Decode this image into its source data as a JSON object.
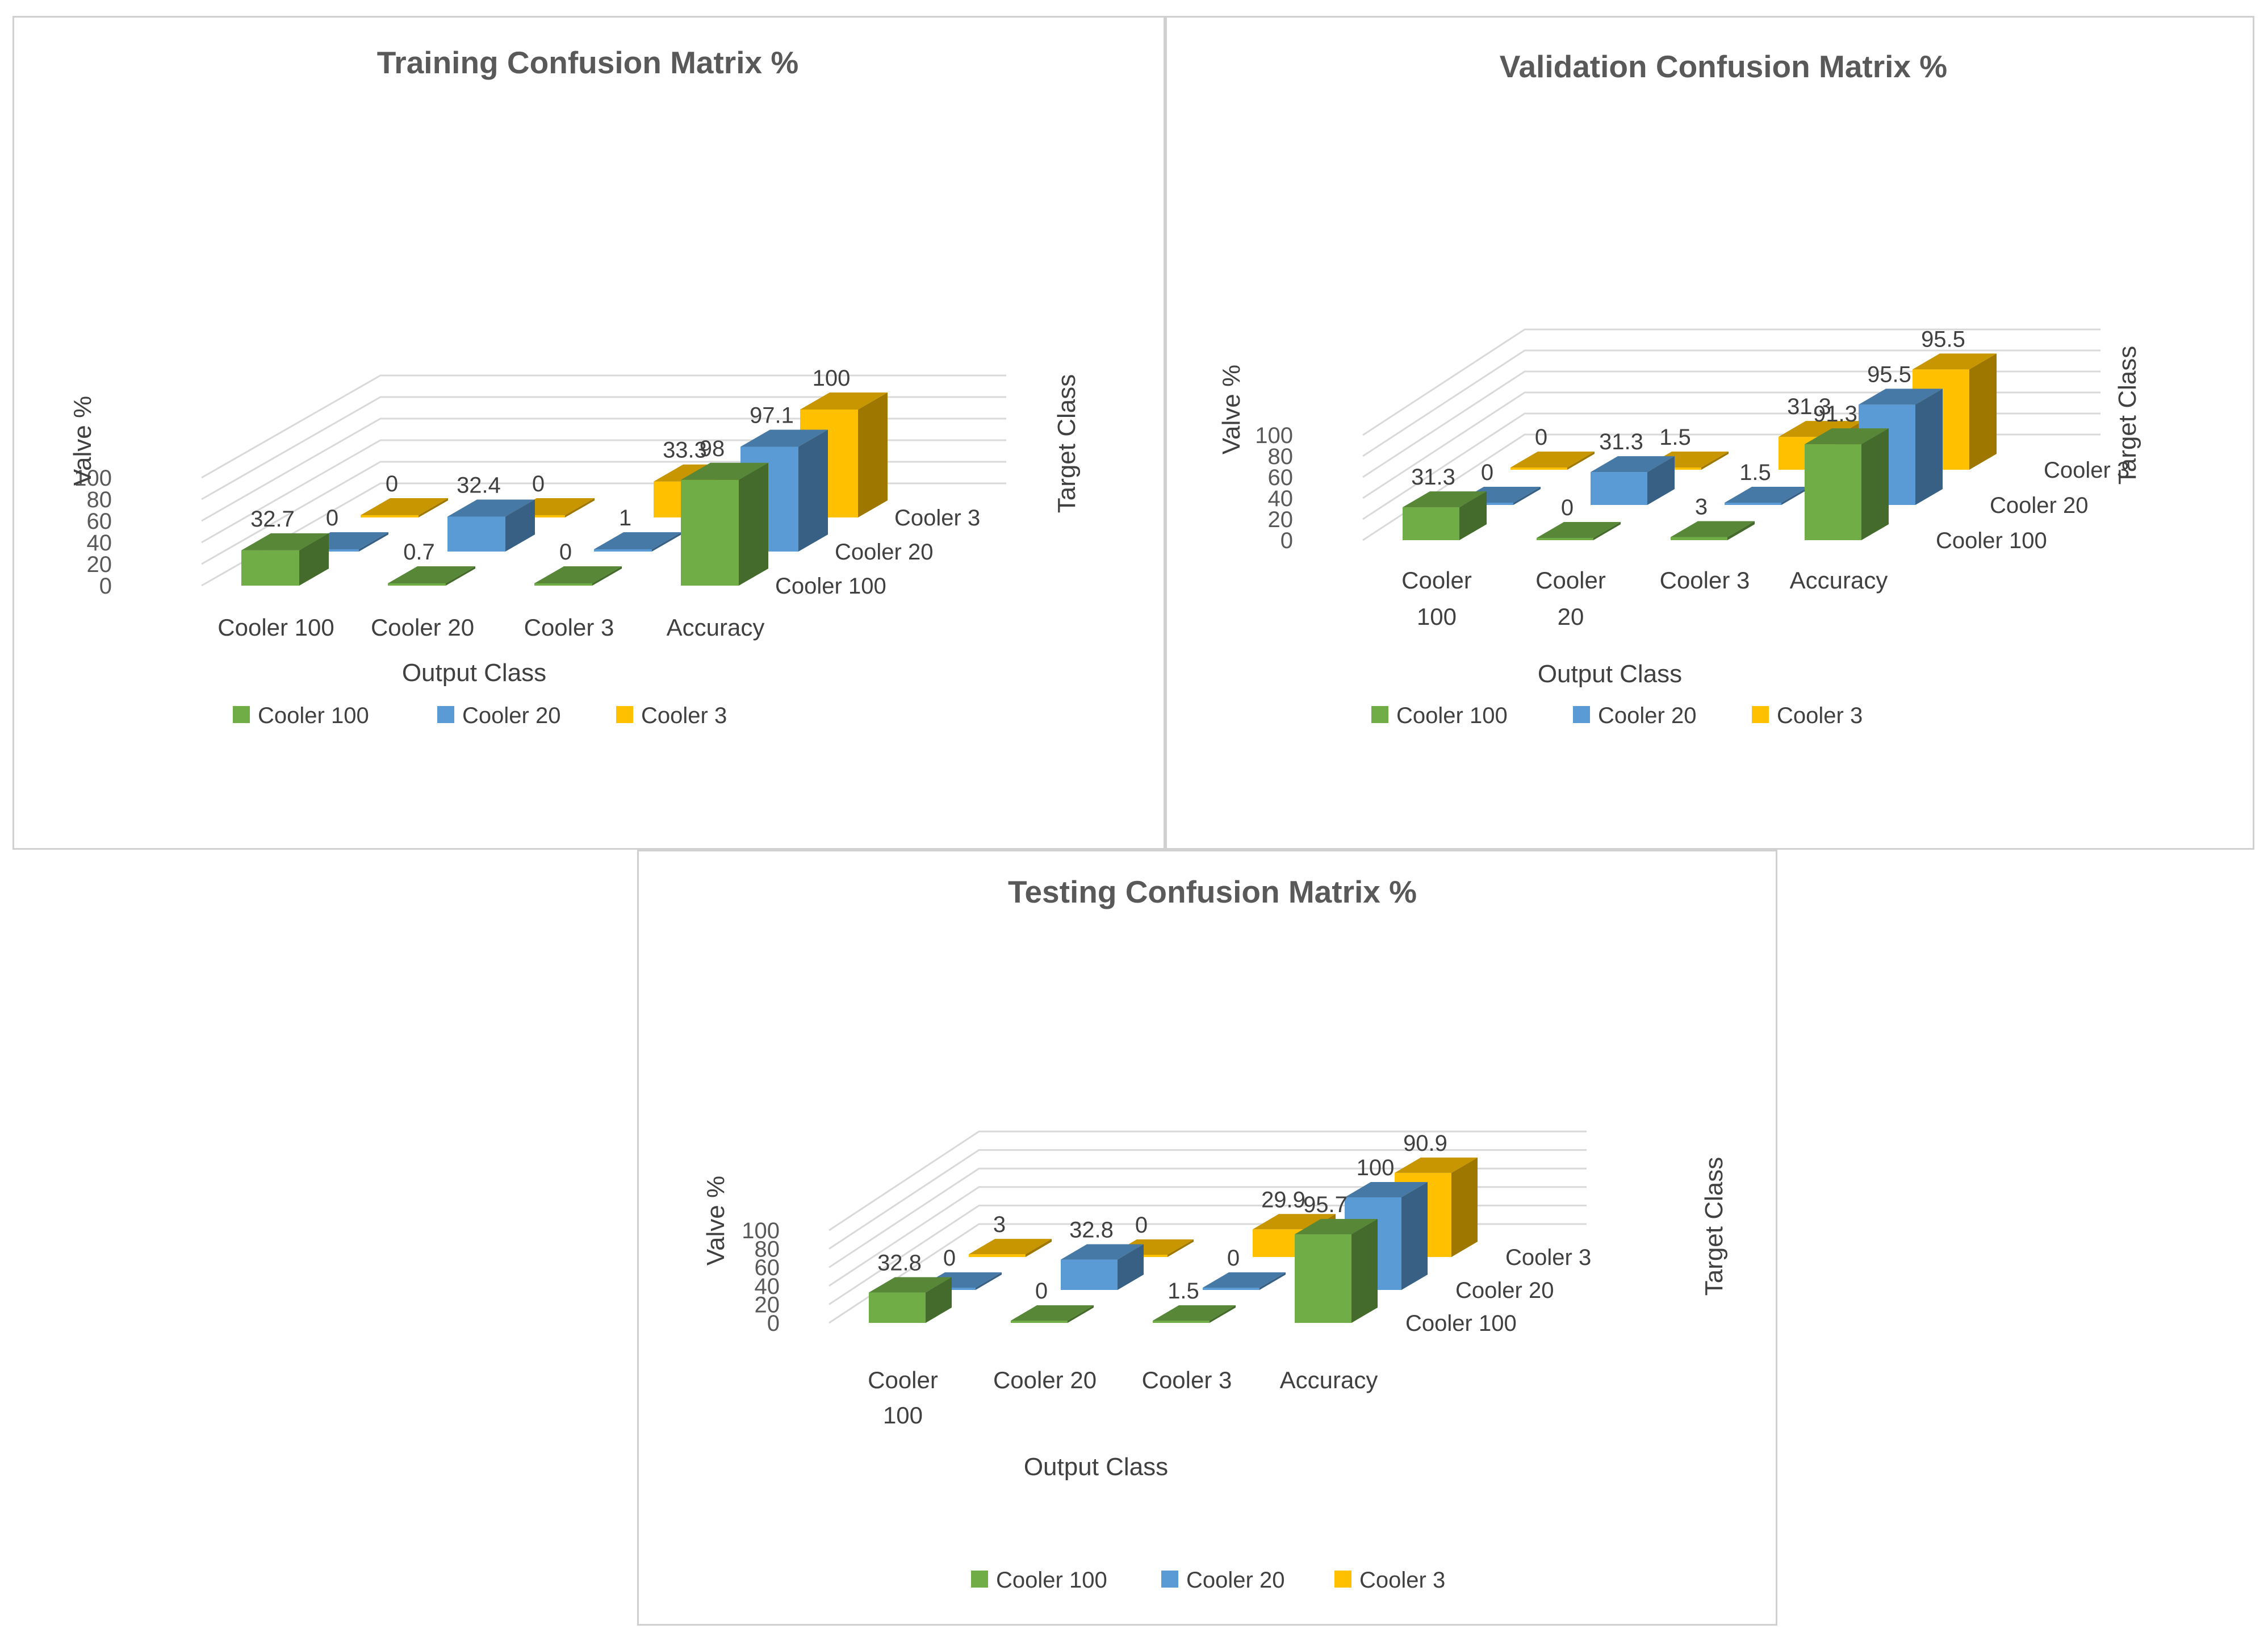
{
  "chart_data": [
    {
      "type": "bar",
      "subtype": "3d-column",
      "title": "Training Confusion Matrix %",
      "xlabel": "Output Class",
      "ylabel": "Valve %",
      "zlabel": "Target Class",
      "categories": [
        "Cooler 100",
        "Cooler  20",
        "Cooler 3",
        "Accuracy"
      ],
      "category_label_lines": [
        [
          "Cooler 100"
        ],
        [
          "Cooler  20"
        ],
        [
          "Cooler 3"
        ],
        [
          "Accuracy"
        ]
      ],
      "depth_labels": [
        "Cooler 100",
        "Cooler 20",
        "Cooler 3"
      ],
      "yticks": [
        "0",
        "20",
        "40",
        "60",
        "80",
        "100"
      ],
      "ylim": [
        0,
        100
      ],
      "series": [
        {
          "name": "Cooler 100",
          "color": "#70AD47",
          "values": [
            32.7,
            0.7,
            0,
            98
          ],
          "labels": [
            "32.7",
            "0.7",
            "0",
            "98"
          ]
        },
        {
          "name": "Cooler 20",
          "color": "#5B9BD5",
          "values": [
            0,
            32.4,
            1,
            97.1
          ],
          "labels": [
            "0",
            "32.4",
            "1",
            "97.1"
          ]
        },
        {
          "name": "Cooler 3",
          "color": "#FFC000",
          "values": [
            0,
            0,
            33.3,
            100
          ],
          "labels": [
            "0",
            "0",
            "33.3",
            "100"
          ]
        }
      ],
      "legend": [
        "Cooler 100",
        "Cooler 20",
        "Cooler 3"
      ],
      "legend_position": "bottom"
    },
    {
      "type": "bar",
      "subtype": "3d-column",
      "title": "Validation Confusion Matrix %",
      "xlabel": "Output Class",
      "ylabel": "Valve %",
      "zlabel": "Target Class",
      "categories": [
        "Cooler 100",
        "Cooler 20",
        "Cooler 3",
        "Accuracy"
      ],
      "category_label_lines": [
        [
          "Cooler",
          "100"
        ],
        [
          "Cooler",
          "20"
        ],
        [
          "Cooler 3"
        ],
        [
          "Accuracy"
        ]
      ],
      "depth_labels": [
        "Cooler 100",
        "Cooler 20",
        "Cooler 3"
      ],
      "yticks": [
        "0",
        "20",
        "40",
        "60",
        "80",
        "100"
      ],
      "ylim": [
        0,
        100
      ],
      "series": [
        {
          "name": "Cooler 100",
          "color": "#70AD47",
          "values": [
            31.3,
            0,
            3,
            91.3
          ],
          "labels": [
            "31.3",
            "0",
            "3",
            "91.3"
          ]
        },
        {
          "name": "Cooler 20",
          "color": "#5B9BD5",
          "values": [
            0,
            31.3,
            1.5,
            95.5
          ],
          "labels": [
            "0",
            "31.3",
            "1.5",
            "95.5"
          ]
        },
        {
          "name": "Cooler 3",
          "color": "#FFC000",
          "values": [
            0,
            1.5,
            31.3,
            95.5
          ],
          "labels": [
            "0",
            "1.5",
            "31.3",
            "95.5"
          ]
        }
      ],
      "legend": [
        "Cooler 100",
        "Cooler 20",
        "Cooler 3"
      ],
      "legend_position": "bottom"
    },
    {
      "type": "bar",
      "subtype": "3d-column",
      "title": "Testing Confusion Matrix %",
      "xlabel": "Output Class",
      "ylabel": "Valve %",
      "zlabel": "Target Class",
      "categories": [
        "Cooler 100",
        "Cooler  20",
        "Cooler 3",
        "Accuracy"
      ],
      "category_label_lines": [
        [
          "Cooler",
          "100"
        ],
        [
          "Cooler  20"
        ],
        [
          "Cooler 3"
        ],
        [
          "Accuracy"
        ]
      ],
      "depth_labels": [
        "Cooler 100",
        "Cooler 20",
        "Cooler 3"
      ],
      "yticks": [
        "0",
        "20",
        "40",
        "60",
        "80",
        "100"
      ],
      "ylim": [
        0,
        100
      ],
      "series": [
        {
          "name": "Cooler 100",
          "color": "#70AD47",
          "values": [
            32.8,
            0,
            1.5,
            95.7
          ],
          "labels": [
            "32.8",
            "0",
            "1.5",
            "95.7"
          ]
        },
        {
          "name": "Cooler 20",
          "color": "#5B9BD5",
          "values": [
            0,
            32.8,
            0,
            100
          ],
          "labels": [
            "0",
            "32.8",
            "0",
            "100"
          ]
        },
        {
          "name": "Cooler 3",
          "color": "#FFC000",
          "values": [
            3,
            0,
            29.9,
            90.9
          ],
          "labels": [
            "3",
            "0",
            "29.9",
            "90.9"
          ]
        }
      ],
      "legend": [
        "Cooler 100",
        "Cooler 20",
        "Cooler 3"
      ],
      "legend_position": "bottom"
    }
  ]
}
